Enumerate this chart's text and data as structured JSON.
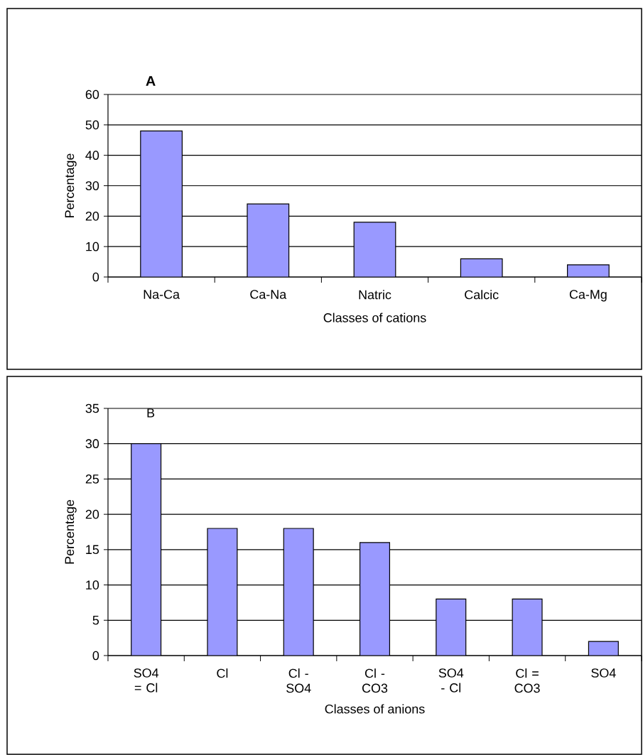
{
  "chart_data": [
    {
      "type": "bar",
      "title": "A",
      "xlabel": "Classes of cations",
      "ylabel": "Percentage",
      "categories": [
        "Na-Ca",
        "Ca-Na",
        "Natric",
        "Calcic",
        "Ca-Mg"
      ],
      "values": [
        48,
        24,
        18,
        6,
        4
      ],
      "color": "#9999ff",
      "ylim": [
        0,
        60
      ],
      "yticks": [
        0,
        10,
        20,
        30,
        40,
        50,
        60
      ],
      "grid": "y"
    },
    {
      "type": "bar",
      "title": "B",
      "xlabel": "Classes of anions",
      "ylabel": "Percentage",
      "categories": [
        "SO4 = Cl",
        "Cl",
        "Cl - SO4",
        "Cl - CO3",
        "SO4 - Cl",
        "Cl = CO3",
        "SO4"
      ],
      "values": [
        30,
        18,
        18,
        16,
        8,
        8,
        2
      ],
      "color": "#9999ff",
      "ylim": [
        0,
        35
      ],
      "yticks": [
        0,
        5,
        10,
        15,
        20,
        25,
        30,
        35
      ],
      "grid": "y"
    }
  ]
}
